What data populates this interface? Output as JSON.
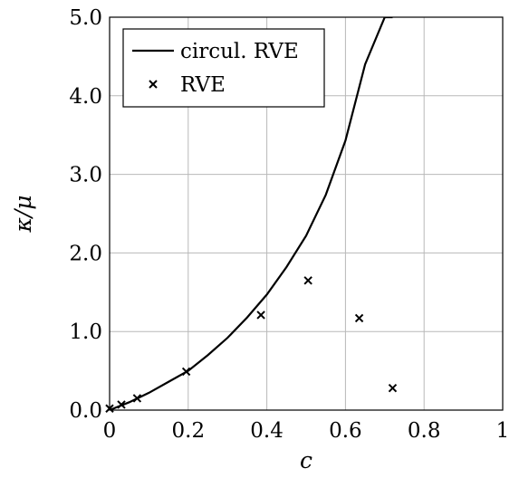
{
  "chart_data": {
    "type": "line",
    "title": "",
    "xlabel": "c",
    "ylabel": "κ/μ",
    "xlim": [
      0,
      1
    ],
    "ylim": [
      0,
      5
    ],
    "x_ticks": [
      "0",
      "0.2",
      "0.4",
      "0.6",
      "0.8",
      "1"
    ],
    "y_ticks": [
      "0.0",
      "1.0",
      "2.0",
      "3.0",
      "4.0",
      "5.0"
    ],
    "x_tick_values": [
      0,
      0.2,
      0.4,
      0.6,
      0.8,
      1
    ],
    "y_tick_values": [
      0,
      1,
      2,
      3,
      4,
      5
    ],
    "grid": true,
    "legend_position": "top-left",
    "series": [
      {
        "name": "circul. RVE",
        "kind": "line",
        "color": "#000000",
        "x": [
          0,
          0.05,
          0.1,
          0.15,
          0.2,
          0.25,
          0.3,
          0.35,
          0.4,
          0.45,
          0.5,
          0.55,
          0.6,
          0.65,
          0.7,
          0.72
        ],
        "y": [
          0,
          0.1,
          0.22,
          0.36,
          0.5,
          0.7,
          0.92,
          1.18,
          1.47,
          1.82,
          2.22,
          2.74,
          3.43,
          4.4,
          5.0,
          5.0
        ]
      },
      {
        "name": "RVE",
        "kind": "scatter",
        "marker": "x",
        "color": "#000000",
        "x": [
          0,
          0.03,
          0.07,
          0.195,
          0.385,
          0.505,
          0.635,
          0.72
        ],
        "y": [
          0.02,
          0.07,
          0.15,
          0.49,
          1.21,
          1.65,
          1.17,
          0.28
        ]
      }
    ]
  }
}
